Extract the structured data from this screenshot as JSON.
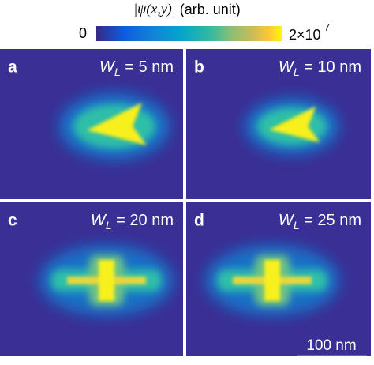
{
  "colorbar": {
    "title_symbol": "|ψ(x,y)|",
    "title_unit": "(arb. unit)",
    "min_label": "0",
    "max_label": "2×10",
    "max_exponent": "-7"
  },
  "panels": [
    {
      "letter": "a",
      "label": "W",
      "subscript": "L",
      "value": "= 5 nm"
    },
    {
      "letter": "b",
      "label": "W",
      "subscript": "L",
      "value": "= 10 nm"
    },
    {
      "letter": "c",
      "label": "W",
      "subscript": "L",
      "value": "= 20 nm"
    },
    {
      "letter": "d",
      "label": "W",
      "subscript": "L",
      "value": "= 25 nm"
    }
  ],
  "scale_bar": {
    "label": "100 nm"
  }
}
